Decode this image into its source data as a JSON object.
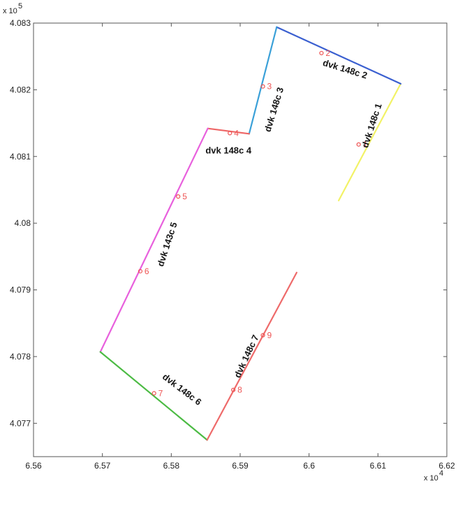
{
  "chart_data": {
    "type": "line",
    "xlim": [
      65600,
      66200
    ],
    "ylim": [
      407650,
      408300
    ],
    "x_ticks": [
      65600,
      65700,
      65800,
      65900,
      66000,
      66100,
      66200
    ],
    "x_tick_labels": [
      "6.56",
      "6.57",
      "6.58",
      "6.59",
      "6.6",
      "6.61",
      "6.62"
    ],
    "y_ticks": [
      407700,
      407800,
      407900,
      408000,
      408100,
      408200,
      408300
    ],
    "y_tick_labels": [
      "4.077",
      "4.078",
      "4.079",
      "4.08",
      "4.081",
      "4.082",
      "4.083"
    ],
    "x_multiplier": "x 10",
    "x_exponent": "4",
    "y_multiplier": "x 10",
    "y_exponent": "5",
    "grid": false,
    "series": [
      {
        "name": "dvk 148c 1",
        "color": "#f2f266",
        "x": [
          66043,
          66133
        ],
        "y": [
          408034,
          408209
        ]
      },
      {
        "name": "dvk 148c 2",
        "color": "#3a5fd0",
        "x": [
          65953,
          66133
        ],
        "y": [
          408294,
          408209
        ]
      },
      {
        "name": "dvk 148c 3",
        "color": "#3aa0d8",
        "x": [
          65913,
          65953
        ],
        "y": [
          408134,
          408294
        ]
      },
      {
        "name": "dvk 148c 4",
        "color": "#ee6666",
        "x": [
          65853,
          65913
        ],
        "y": [
          408142,
          408134
        ]
      },
      {
        "name": "dvk 143c 5",
        "color": "#e860dd",
        "x": [
          65697,
          65853
        ],
        "y": [
          407807,
          408142
        ]
      },
      {
        "name": "dvk 148c 6",
        "color": "#4cbb44",
        "x": [
          65697,
          65852
        ],
        "y": [
          407807,
          407675
        ]
      },
      {
        "name": "dvk 148c 7",
        "color": "#ee6a6a",
        "x": [
          65852,
          65982
        ],
        "y": [
          407675,
          407926
        ]
      }
    ],
    "markers": [
      {
        "label": "1",
        "x": 66072,
        "y": 408118
      },
      {
        "label": "2",
        "x": 66018,
        "y": 408255
      },
      {
        "label": "3",
        "x": 65933,
        "y": 408205
      },
      {
        "label": "4",
        "x": 65885,
        "y": 408135
      },
      {
        "label": "5",
        "x": 65810,
        "y": 408040
      },
      {
        "label": "6",
        "x": 65755,
        "y": 407928
      },
      {
        "label": "7",
        "x": 65775,
        "y": 407745
      },
      {
        "label": "8",
        "x": 65890,
        "y": 407750
      },
      {
        "label": "9",
        "x": 65933,
        "y": 407832
      }
    ],
    "segment_labels": [
      {
        "text": "dvk 148c 1",
        "x": 66092,
        "y": 408146,
        "rotate": -72
      },
      {
        "text": "dvk 148c 2",
        "x": 66052,
        "y": 408230,
        "rotate": 17
      },
      {
        "text": "dvk 148c 3",
        "x": 65950,
        "y": 408170,
        "rotate": -73
      },
      {
        "text": "dvk 148c 4",
        "x": 65883,
        "y": 408108,
        "rotate": 0
      },
      {
        "text": "dvk 143c 5",
        "x": 65795,
        "y": 407968,
        "rotate": -72
      },
      {
        "text": "dvk 148c 6",
        "x": 65815,
        "y": 407750,
        "rotate": 37
      },
      {
        "text": "dvk 148c 7",
        "x": 65910,
        "y": 407800,
        "rotate": -65
      }
    ]
  }
}
